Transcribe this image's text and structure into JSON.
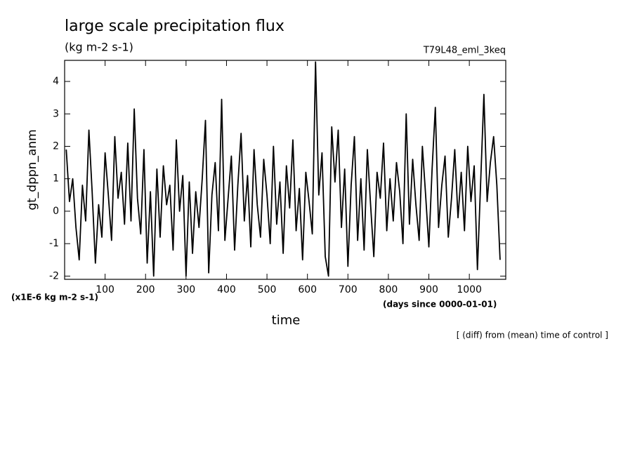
{
  "chart_data": {
    "type": "line",
    "title": "large scale precipitation flux",
    "subtitle": "(kg m-2 s-1)",
    "experiment": "T79L48_eml_3keq",
    "ylabel": "gt_dppn_anm",
    "yunits": "(x1E-6 kg m-2 s-1)",
    "xlabel": "time",
    "xunits": "(days since 0000-01-01)",
    "note": "[ (diff) from (mean) time of control ]",
    "xlim": [
      0,
      1090
    ],
    "ylim": [
      -2.1,
      4.65
    ],
    "xticks": [
      100,
      200,
      300,
      400,
      500,
      600,
      700,
      800,
      900,
      1000
    ],
    "yticks": [
      -2,
      -1,
      0,
      1,
      2,
      3,
      4
    ],
    "color": "#000000",
    "x": [
      4,
      12,
      20,
      28,
      36,
      44,
      52,
      60,
      68,
      76,
      84,
      92,
      100,
      108,
      116,
      124,
      132,
      140,
      148,
      156,
      164,
      172,
      180,
      188,
      196,
      204,
      212,
      220,
      228,
      236,
      244,
      252,
      260,
      268,
      276,
      284,
      292,
      300,
      308,
      316,
      324,
      332,
      340,
      348,
      356,
      364,
      372,
      380,
      388,
      396,
      404,
      412,
      420,
      428,
      436,
      444,
      452,
      460,
      468,
      476,
      484,
      492,
      500,
      508,
      516,
      524,
      532,
      540,
      548,
      556,
      564,
      572,
      580,
      588,
      596,
      604,
      612,
      620,
      628,
      636,
      644,
      652,
      660,
      668,
      676,
      684,
      692,
      700,
      708,
      716,
      724,
      732,
      740,
      748,
      756,
      764,
      772,
      780,
      788,
      796,
      804,
      812,
      820,
      828,
      836,
      844,
      852,
      860,
      868,
      876,
      884,
      892,
      900,
      908,
      916,
      924,
      932,
      940,
      948,
      956,
      964,
      972,
      980,
      988,
      996,
      1004,
      1012,
      1020,
      1028,
      1036,
      1044,
      1052,
      1060,
      1068,
      1076
    ],
    "values": [
      1.9,
      0.3,
      1.0,
      -0.5,
      -1.5,
      0.8,
      -0.3,
      2.5,
      0.6,
      -1.6,
      0.2,
      -0.8,
      1.8,
      0.5,
      -0.9,
      2.3,
      0.4,
      1.2,
      -0.4,
      2.1,
      -0.3,
      3.15,
      0.4,
      -0.7,
      1.9,
      -1.6,
      0.6,
      -2.0,
      1.3,
      -0.8,
      1.4,
      0.2,
      0.8,
      -1.2,
      2.2,
      0.0,
      1.1,
      -2.0,
      0.9,
      -1.3,
      0.6,
      -0.5,
      1.0,
      2.8,
      -1.9,
      0.5,
      1.5,
      -0.6,
      3.45,
      -0.9,
      0.4,
      1.7,
      -1.2,
      0.8,
      2.4,
      -0.3,
      1.1,
      -1.1,
      1.9,
      0.2,
      -0.8,
      1.6,
      0.5,
      -1.0,
      2.0,
      -0.4,
      0.9,
      -1.3,
      1.4,
      0.1,
      2.2,
      -0.6,
      0.7,
      -1.5,
      1.2,
      0.3,
      -0.7,
      4.6,
      0.5,
      1.8,
      -1.4,
      -2.0,
      2.6,
      0.9,
      2.5,
      -0.5,
      1.3,
      -1.7,
      0.8,
      2.3,
      -0.9,
      1.0,
      -1.2,
      1.9,
      0.2,
      -1.4,
      1.2,
      0.4,
      2.1,
      -0.6,
      1.0,
      -0.3,
      1.5,
      0.6,
      -1.0,
      3.0,
      -0.4,
      1.6,
      0.2,
      -0.9,
      2.0,
      0.5,
      -1.1,
      1.3,
      3.2,
      -0.5,
      0.8,
      1.7,
      -0.8,
      0.4,
      1.9,
      -0.2,
      1.2,
      -0.6,
      2.0,
      0.3,
      1.4,
      -1.8,
      0.9,
      3.6,
      0.3,
      1.5,
      2.3,
      0.8,
      -1.5
    ]
  }
}
